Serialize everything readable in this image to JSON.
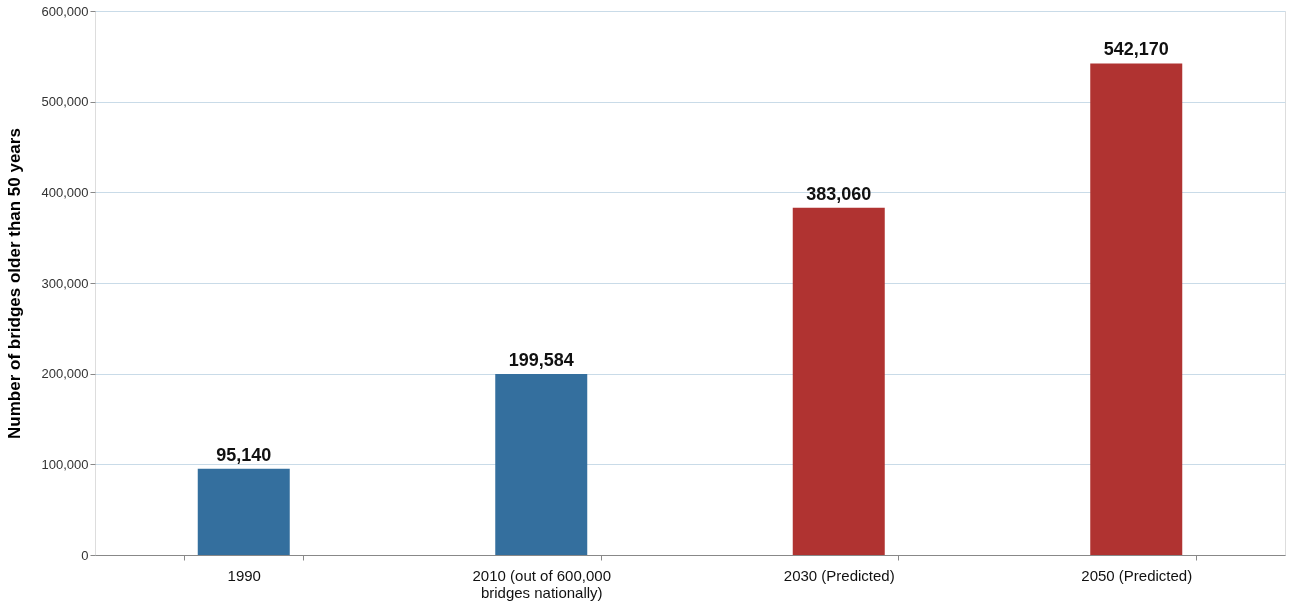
{
  "chart_data": {
    "type": "bar",
    "ylabel": "Number of bridges older than 50 years",
    "categories": [
      "1990",
      "2010 (out of 600,000 bridges nationally)",
      "2030 (Predicted)",
      "2050 (Predicted)"
    ],
    "values": [
      95140,
      199584,
      383060,
      542170
    ],
    "value_labels": [
      "95,140",
      "199,584",
      "383,060",
      "542,170"
    ],
    "colors": [
      "#346f9e",
      "#346f9e",
      "#b03331",
      "#b03331"
    ],
    "ylim": [
      0,
      600000
    ],
    "yticks": [
      0,
      {
        "value": 100000,
        "label": "100,000"
      },
      {
        "value": 200000,
        "label": "200,000"
      },
      {
        "value": 300000,
        "label": "300,000"
      },
      {
        "value": 400000,
        "label": "400,000"
      },
      {
        "value": 500000,
        "label": "500,000"
      },
      {
        "value": 600000,
        "label": "600,000"
      }
    ],
    "grid": "y"
  }
}
